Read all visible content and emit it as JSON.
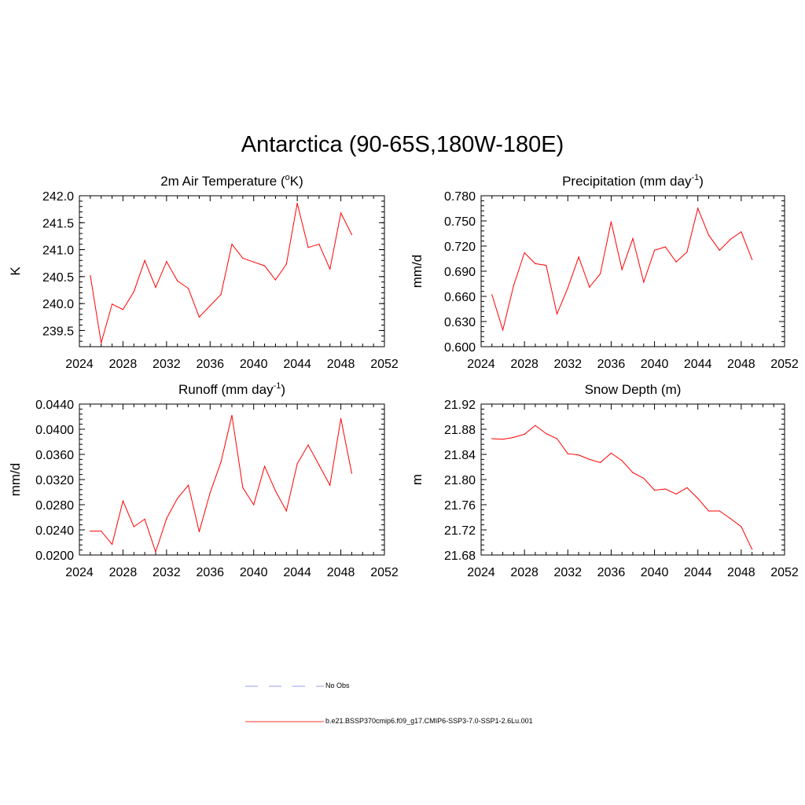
{
  "title": "Antarctica (90-65S,180W-180E)",
  "legend": {
    "items": [
      {
        "label": "No Obs",
        "color": "#9999ee",
        "dash": true
      },
      {
        "label": "b.e21.BSSP370cmip6.f09_g17.CMIP6-SSP3-7.0-SSP1-2.6Lu.001",
        "color": "#ff3333",
        "dash": false
      }
    ]
  },
  "line_color": "#ff0000",
  "chart_data": [
    {
      "type": "line",
      "title": "2m Air Temperature (°K)",
      "title_main": "2m Air Temperature (",
      "title_sup": "o",
      "title_tail": "K)",
      "ylabel": "K",
      "xlim": [
        2024,
        2052
      ],
      "ylim": [
        239.2,
        242.0
      ],
      "xticks": [
        "2024",
        "2028",
        "2032",
        "2036",
        "2040",
        "2044",
        "2048",
        "2052"
      ],
      "yticks": [
        "239.5",
        "240.0",
        "240.5",
        "241.0",
        "241.5",
        "242.0"
      ],
      "x": [
        2025,
        2026,
        2027,
        2028,
        2029,
        2030,
        2031,
        2032,
        2033,
        2034,
        2035,
        2036,
        2037,
        2038,
        2039,
        2040,
        2041,
        2042,
        2043,
        2044,
        2045,
        2046,
        2047,
        2048,
        2049
      ],
      "y": [
        240.52,
        239.27,
        239.99,
        239.89,
        240.22,
        240.8,
        240.3,
        240.78,
        240.42,
        240.28,
        239.75,
        239.96,
        240.17,
        241.1,
        240.84,
        240.77,
        240.7,
        240.44,
        240.73,
        241.86,
        241.04,
        241.1,
        240.64,
        241.68,
        241.28
      ]
    },
    {
      "type": "line",
      "title": "Precipitation (mm day-1)",
      "title_main": "Precipitation (mm day",
      "title_sup": "-1",
      "title_tail": ")",
      "ylabel": "mm/d",
      "xlim": [
        2024,
        2052
      ],
      "ylim": [
        0.6,
        0.78
      ],
      "xticks": [
        "2024",
        "2028",
        "2032",
        "2036",
        "2040",
        "2044",
        "2048",
        "2052"
      ],
      "yticks": [
        "0.600",
        "0.630",
        "0.660",
        "0.690",
        "0.720",
        "0.750",
        "0.780"
      ],
      "x": [
        2025,
        2026,
        2027,
        2028,
        2029,
        2030,
        2031,
        2032,
        2033,
        2034,
        2035,
        2036,
        2037,
        2038,
        2039,
        2040,
        2041,
        2042,
        2043,
        2044,
        2045,
        2046,
        2047,
        2048,
        2049
      ],
      "y": [
        0.662,
        0.62,
        0.673,
        0.712,
        0.699,
        0.697,
        0.639,
        0.67,
        0.707,
        0.671,
        0.687,
        0.749,
        0.692,
        0.729,
        0.677,
        0.715,
        0.719,
        0.701,
        0.713,
        0.765,
        0.733,
        0.715,
        0.728,
        0.737,
        0.704
      ]
    },
    {
      "type": "line",
      "title": "Runoff (mm day-1)",
      "title_main": "Runoff (mm day",
      "title_sup": "-1",
      "title_tail": ")",
      "ylabel": "mm/d",
      "xlim": [
        2024,
        2052
      ],
      "ylim": [
        0.02,
        0.044
      ],
      "xticks": [
        "2024",
        "2028",
        "2032",
        "2036",
        "2040",
        "2044",
        "2048",
        "2052"
      ],
      "yticks": [
        "0.0200",
        "0.0240",
        "0.0280",
        "0.0320",
        "0.0360",
        "0.0400",
        "0.0440"
      ],
      "x": [
        2025,
        2026,
        2027,
        2028,
        2029,
        2030,
        2031,
        2032,
        2033,
        2034,
        2035,
        2036,
        2037,
        2038,
        2039,
        2040,
        2041,
        2042,
        2043,
        2044,
        2045,
        2046,
        2047,
        2048,
        2049
      ],
      "y": [
        0.0238,
        0.0238,
        0.0217,
        0.0286,
        0.0245,
        0.0257,
        0.0205,
        0.0258,
        0.029,
        0.0311,
        0.0237,
        0.0299,
        0.0348,
        0.0422,
        0.0307,
        0.028,
        0.0341,
        0.0302,
        0.027,
        0.0345,
        0.0375,
        0.0343,
        0.0311,
        0.0417,
        0.033
      ]
    },
    {
      "type": "line",
      "title": "Snow Depth (m)",
      "title_main": "Snow Depth (m)",
      "title_sup": "",
      "title_tail": "",
      "ylabel": "m",
      "xlim": [
        2024,
        2052
      ],
      "ylim": [
        21.68,
        21.92
      ],
      "xticks": [
        "2024",
        "2028",
        "2032",
        "2036",
        "2040",
        "2044",
        "2048",
        "2052"
      ],
      "yticks": [
        "21.68",
        "21.72",
        "21.76",
        "21.80",
        "21.84",
        "21.88",
        "21.92"
      ],
      "x": [
        2025,
        2026,
        2027,
        2028,
        2029,
        2030,
        2031,
        2032,
        2033,
        2034,
        2035,
        2036,
        2037,
        2038,
        2039,
        2040,
        2041,
        2042,
        2043,
        2044,
        2045,
        2046,
        2047,
        2048,
        2049
      ],
      "y": [
        21.865,
        21.864,
        21.867,
        21.872,
        21.886,
        21.873,
        21.865,
        21.841,
        21.839,
        21.832,
        21.827,
        21.842,
        21.83,
        21.811,
        21.802,
        21.783,
        21.785,
        21.777,
        21.787,
        21.77,
        21.75,
        21.75,
        21.738,
        21.725,
        21.689
      ]
    }
  ]
}
